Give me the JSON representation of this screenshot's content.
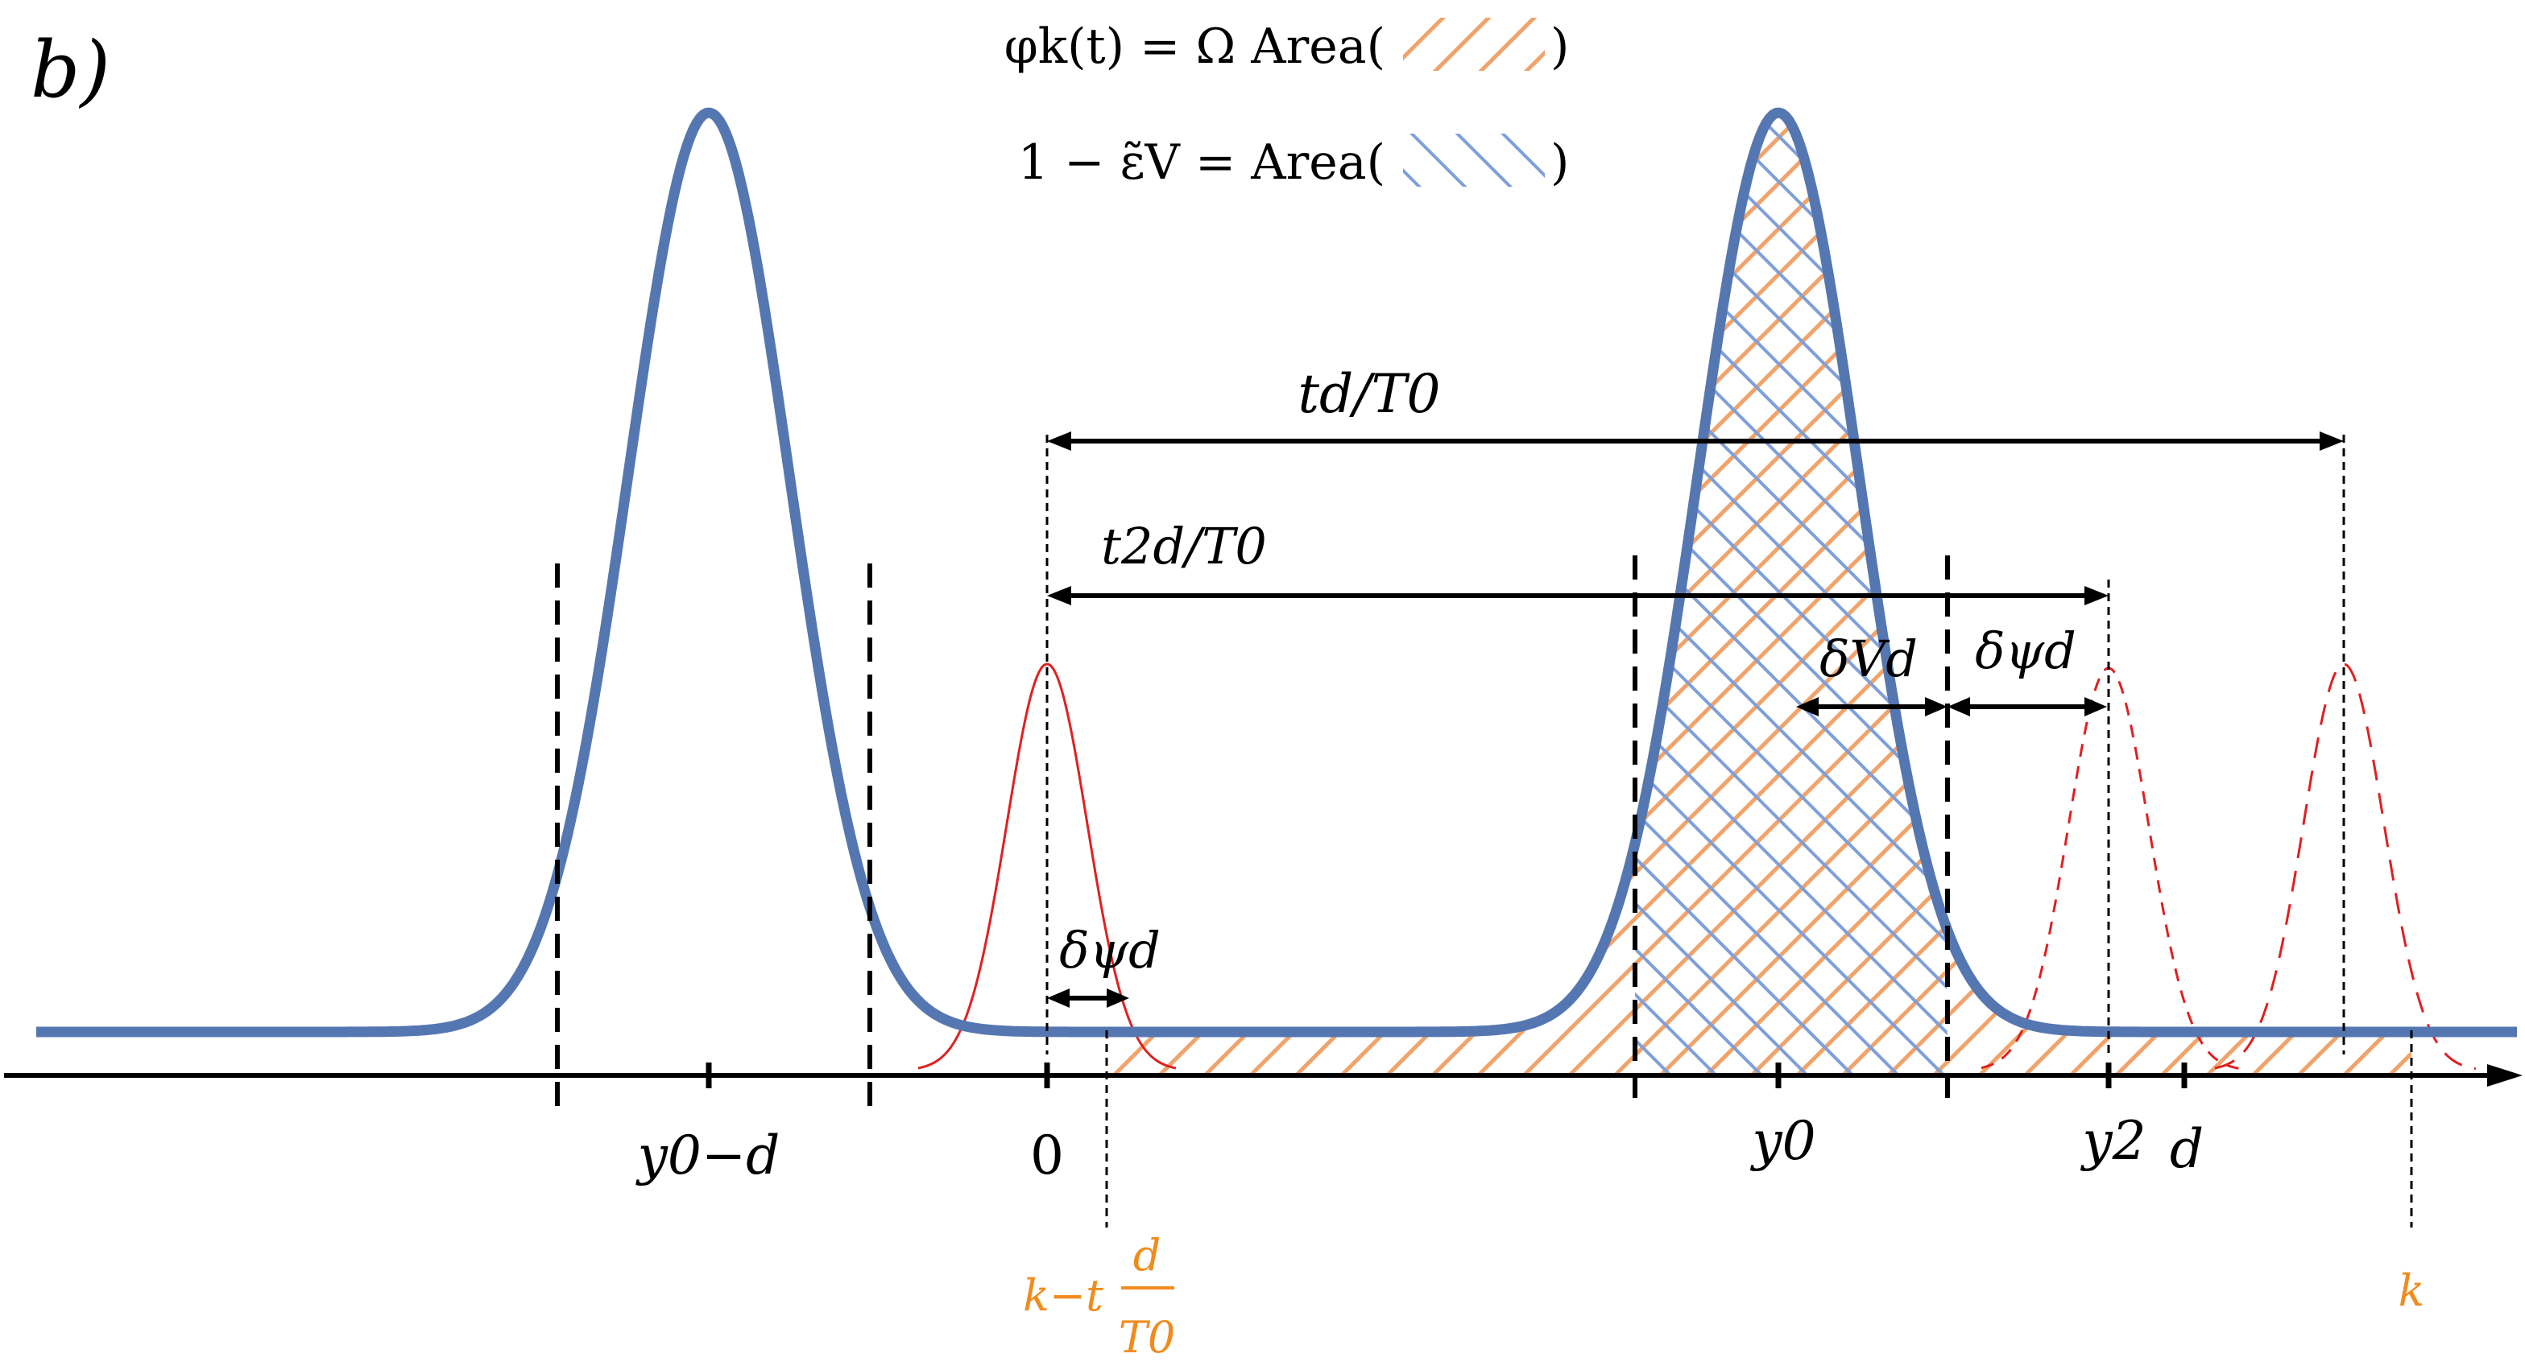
{
  "panel_label": "b)",
  "legend": {
    "line1": {
      "lhs": "φk(t) = Ω Area(",
      "rhs": ")"
    },
    "line2": {
      "lhs": "1 − ε̃V = Area(",
      "rhs": ")"
    }
  },
  "axis_ticks": {
    "y0_minus_d": "y0−d",
    "zero": "0",
    "y0": "y0",
    "y2": "y2",
    "d": "d"
  },
  "orange_labels": {
    "k_minus": "k−t",
    "frac_num": "d",
    "frac_den": "T0",
    "k": "k"
  },
  "annotations": {
    "td_T0": "td/T0",
    "t2d_T0": "t2d/T0",
    "delta_psi_d_left": "δψd",
    "delta_V_d": "δVd",
    "delta_psi_d_right": "δψd"
  },
  "colors": {
    "blue_curve": "#5577b1",
    "orange_hatch": "#f0a36b",
    "blue_hatch": "#7f9fd9",
    "red_curve": "#e02020",
    "axis": "#000000",
    "orange_text": "#f08c1e"
  }
}
